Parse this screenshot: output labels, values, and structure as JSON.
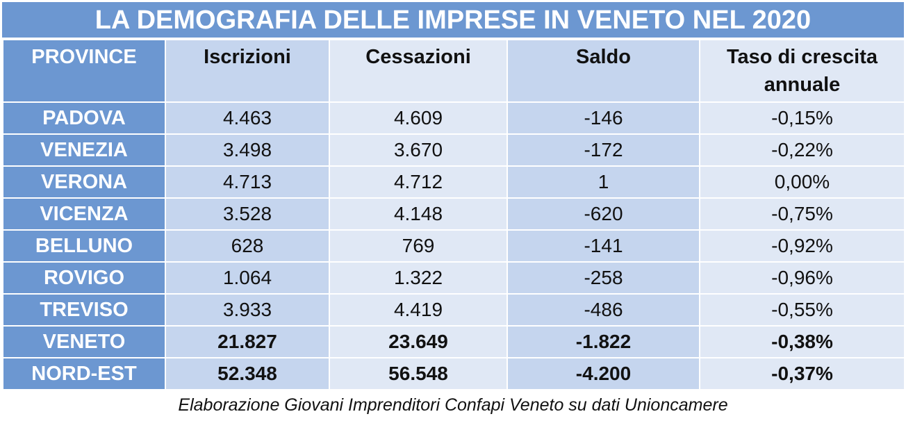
{
  "title": "LA DEMOGRAFIA DELLE IMPRESE IN VENETO NEL 2020",
  "headers": {
    "province": "PROVINCE",
    "iscrizioni": "Iscrizioni",
    "cessazioni": "Cessazioni",
    "saldo": "Saldo",
    "taso_line1": "Taso di crescita",
    "taso_line2": "annuale"
  },
  "rows": [
    {
      "province": "PADOVA",
      "iscrizioni": "4.463",
      "cessazioni": "4.609",
      "saldo": "-146",
      "taso": "-0,15%"
    },
    {
      "province": "VENEZIA",
      "iscrizioni": "3.498",
      "cessazioni": "3.670",
      "saldo": "-172",
      "taso": "-0,22%"
    },
    {
      "province": "VERONA",
      "iscrizioni": "4.713",
      "cessazioni": "4.712",
      "saldo": "1",
      "taso": "0,00%"
    },
    {
      "province": "VICENZA",
      "iscrizioni": "3.528",
      "cessazioni": "4.148",
      "saldo": "-620",
      "taso": "-0,75%"
    },
    {
      "province": "BELLUNO",
      "iscrizioni": "628",
      "cessazioni": "769",
      "saldo": "-141",
      "taso": "-0,92%"
    },
    {
      "province": "ROVIGO",
      "iscrizioni": "1.064",
      "cessazioni": "1.322",
      "saldo": "-258",
      "taso": "-0,96%"
    },
    {
      "province": "TREVISO",
      "iscrizioni": "3.933",
      "cessazioni": "4.419",
      "saldo": "-486",
      "taso": "-0,55%"
    },
    {
      "province": "VENETO",
      "iscrizioni": "21.827",
      "cessazioni": "23.649",
      "saldo": "-1.822",
      "taso": "-0,38%"
    },
    {
      "province": "NORD-EST",
      "iscrizioni": "52.348",
      "cessazioni": "56.548",
      "saldo": "-4.200",
      "taso": "-0,37%"
    }
  ],
  "caption": "Elaborazione Giovani Imprenditori Confapi Veneto su dati Unioncamere",
  "colors": {
    "title_bg": "#6c97d1",
    "province_bg": "#6c97d1",
    "band_dark": "#c5d5ee",
    "band_light": "#e0e8f5"
  }
}
